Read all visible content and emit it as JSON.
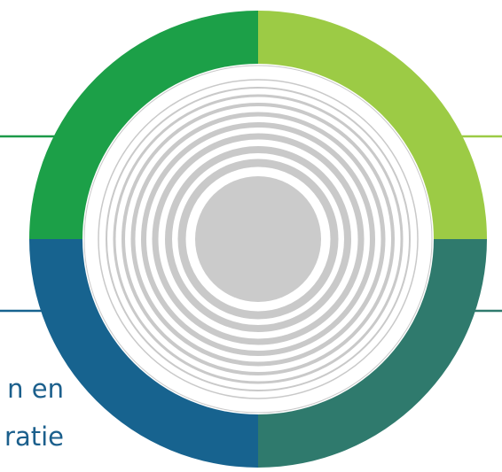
{
  "labels": {
    "bottom_left_line_1": "n en",
    "bottom_left_line_2": "ratie"
  },
  "colors": {
    "segment_top_left": "#1ca048",
    "segment_top_right": "#9ccb45",
    "segment_bottom_right": "#2f7a6d",
    "segment_bottom_left": "#17638f",
    "connector_left_upper": "#1c9a49",
    "connector_right_upper": "#9ccb45",
    "connector_left_lower": "#17638f",
    "connector_right_lower": "#2f7a6d",
    "inner_rings": "#c9c9c9",
    "center_disc": "#cbcbcb"
  },
  "ring_segments": [
    {
      "name": "segment-top-left",
      "color_key": "segment_top_left"
    },
    {
      "name": "segment-top-right",
      "color_key": "segment_top_right"
    },
    {
      "name": "segment-bottom-right",
      "color_key": "segment_bottom_right"
    },
    {
      "name": "segment-bottom-left",
      "color_key": "segment_bottom_left"
    }
  ]
}
